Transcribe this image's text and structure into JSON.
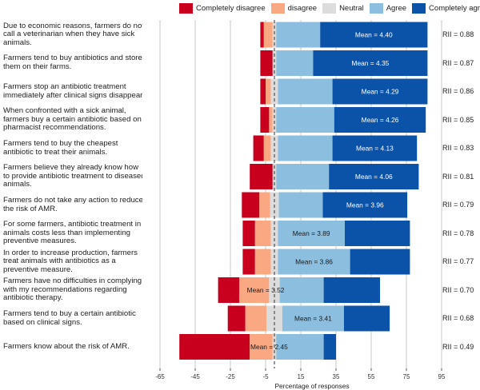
{
  "chart_data": {
    "type": "bar",
    "subtype": "diverging-stacked-bar",
    "xlabel": "Percentage of responses",
    "xlim": [
      -75,
      95
    ],
    "xticks": [
      -65,
      -45,
      -25,
      -5,
      15,
      35,
      55,
      75,
      95
    ],
    "tick_labels": [
      "-65",
      "-45",
      "-25",
      "-5",
      "15",
      "35",
      "55",
      "75",
      "95"
    ],
    "center_line_value": 0,
    "legend": [
      {
        "label": "Completely disagree",
        "color": "#c8001e"
      },
      {
        "label": "disagree",
        "color": "#f9a882"
      },
      {
        "label": "Neutral",
        "color": "#dcdcdc"
      },
      {
        "label": "Agree",
        "color": "#8cbfdf"
      },
      {
        "label": "Completely agree",
        "color": "#0b53a8"
      }
    ],
    "rows": [
      {
        "statement": "Due to economic reasons, farmers do not call a veterinarian when they have sick animals.",
        "values": [
          2,
          5,
          2,
          25,
          61
        ],
        "mean_label": "Mean = 4.40",
        "rii_label": "RII = 0.88"
      },
      {
        "statement": "Farmers tend to buy antibiotics and store them on their farms.",
        "values": [
          7,
          0,
          2,
          21,
          65
        ],
        "mean_label": "Mean = 4.35",
        "rii_label": "RII = 0.87"
      },
      {
        "statement": "Farmers stop an antibiotic treatment immediately after clinical signs disappear.",
        "values": [
          3,
          3,
          4,
          31,
          54
        ],
        "mean_label": "Mean = 4.29",
        "rii_label": "RII = 0.86"
      },
      {
        "statement": "When confronted with a sick animal, farmers buy a certain antibiotic based on pharmacist recommendations.",
        "values": [
          5,
          2,
          2,
          33,
          52
        ],
        "mean_label": "Mean = 4.26",
        "rii_label": "RII = 0.85"
      },
      {
        "statement": "Farmers tend to buy the cheapest antibiotic to treat their animals.",
        "values": [
          6,
          4,
          4,
          31,
          48
        ],
        "mean_label": "Mean = 4.13",
        "rii_label": "RII = 0.83"
      },
      {
        "statement": "Farmers believe they already know how to provide antibiotic treatment to diseased animals.",
        "values": [
          13,
          0,
          2,
          30,
          51
        ],
        "mean_label": "Mean = 4.06",
        "rii_label": "RII = 0.81"
      },
      {
        "statement": "Farmers do not take any action to reduce the risk of AMR.",
        "values": [
          10,
          6,
          5,
          25,
          48
        ],
        "mean_label": "Mean = 3.96",
        "rii_label": "RII = 0.79"
      },
      {
        "statement": "For some farmers, antibiotic treatment in animals costs less than implementing preventive measures.",
        "values": [
          7,
          9,
          4,
          38,
          37
        ],
        "mean_label": "Mean = 3.89",
        "rii_label": "RII = 0.78"
      },
      {
        "statement": "In order to increase production, farmers treat animals with antibiotics as a preventive measure.",
        "values": [
          7,
          9,
          4,
          41,
          34
        ],
        "mean_label": "Mean = 3.86",
        "rii_label": "RII = 0.77"
      },
      {
        "statement": "Farmers have no difficulties in complying with my recommendations regarding antibiotic therapy.",
        "values": [
          12,
          17,
          6,
          25,
          32
        ],
        "mean_label": "Mean = 3.52",
        "rii_label": "RII = 0.70"
      },
      {
        "statement": "Farmers tend to buy a certain antibiotic based on clinical signs.",
        "values": [
          10,
          12,
          9,
          35,
          26
        ],
        "mean_label": "Mean = 3.41",
        "rii_label": "RII = 0.68"
      },
      {
        "statement": "Farmers know about the risk of AMR.",
        "values": [
          40,
          13,
          2,
          27,
          7
        ],
        "mean_label": "Mean = 2.45",
        "rii_label": "RII = 0.49"
      }
    ]
  }
}
